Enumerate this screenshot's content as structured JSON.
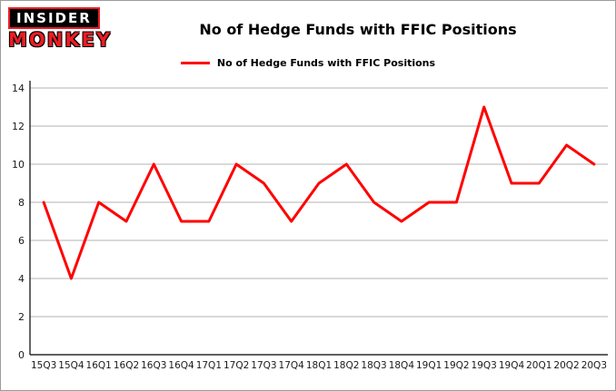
{
  "logo": {
    "line1": "INSIDER",
    "line2": "MONKEY"
  },
  "header": {
    "title": "No of Hedge Funds with FFIC Positions"
  },
  "legend": {
    "label": "No of Hedge Funds with FFIC Positions",
    "color": "#ff0000"
  },
  "colors": {
    "line": "#ff0000",
    "grid": "#b3b3b3",
    "axis": "#000000",
    "tick_text": "#1a1a1a"
  },
  "chart_data": {
    "type": "line",
    "title": "No of Hedge Funds with FFIC Positions",
    "categories": [
      "15Q3",
      "15Q4",
      "16Q1",
      "16Q2",
      "16Q3",
      "16Q4",
      "17Q1",
      "17Q2",
      "17Q3",
      "17Q4",
      "18Q1",
      "18Q2",
      "18Q3",
      "18Q4",
      "19Q1",
      "19Q2",
      "19Q3",
      "19Q4",
      "20Q1",
      "20Q2",
      "20Q3"
    ],
    "series": [
      {
        "name": "No of Hedge Funds with FFIC Positions",
        "color": "#ff0000",
        "values": [
          8,
          4,
          8,
          7,
          10,
          7,
          7,
          10,
          9,
          7,
          9,
          10,
          8,
          7,
          8,
          8,
          13,
          9,
          9,
          11,
          10
        ]
      }
    ],
    "xlabel": "",
    "ylabel": "",
    "ylim": [
      0,
      14
    ],
    "yticks": [
      0,
      2,
      4,
      6,
      8,
      10,
      12,
      14
    ],
    "grid": true,
    "legend_position": "top"
  }
}
